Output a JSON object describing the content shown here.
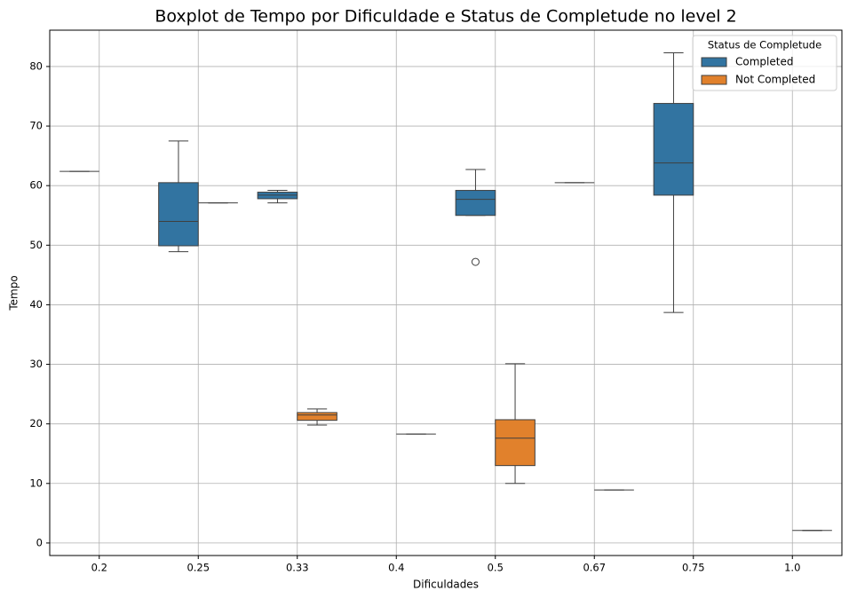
{
  "chart_data": {
    "type": "boxplot",
    "title": "Boxplot de Tempo por Dificuldade e Status de Completude no level 2",
    "x_label": "Dificuldades",
    "y_label": "Tempo",
    "categories": [
      "0.2",
      "0.25",
      "0.33",
      "0.4",
      "0.5",
      "0.67",
      "0.75",
      "1.0"
    ],
    "legend_title": "Status de Completude",
    "legend_position": "upper right",
    "grid": true,
    "ylim": [
      -2.1,
      86.1
    ],
    "yticks": [
      0,
      10,
      20,
      30,
      40,
      50,
      60,
      70,
      80
    ],
    "series": [
      {
        "name": "Completed",
        "color": "#3274a1",
        "boxes": [
          {
            "min": 62.4,
            "q1": 62.4,
            "median": 62.4,
            "q3": 62.4,
            "max": 62.4,
            "outliers": []
          },
          {
            "min": 48.9,
            "q1": 49.9,
            "median": 54.0,
            "q3": 60.5,
            "max": 67.5,
            "outliers": []
          },
          {
            "min": 57.1,
            "q1": 57.8,
            "median": 58.4,
            "q3": 58.9,
            "max": 59.2,
            "outliers": []
          },
          null,
          {
            "min": 55.0,
            "q1": 55.0,
            "median": 57.7,
            "q3": 59.2,
            "max": 62.7,
            "outliers": [
              47.2
            ]
          },
          {
            "min": 60.5,
            "q1": 60.5,
            "median": 60.5,
            "q3": 60.5,
            "max": 60.5,
            "outliers": []
          },
          {
            "min": 38.7,
            "q1": 58.4,
            "median": 63.8,
            "q3": 73.8,
            "max": 82.3,
            "outliers": []
          },
          null
        ]
      },
      {
        "name": "Not Completed",
        "color": "#e1812c",
        "boxes": [
          null,
          {
            "min": 57.1,
            "q1": 57.1,
            "median": 57.1,
            "q3": 57.1,
            "max": 57.1,
            "outliers": []
          },
          {
            "min": 19.8,
            "q1": 20.6,
            "median": 21.5,
            "q3": 21.9,
            "max": 22.5,
            "outliers": []
          },
          {
            "min": 18.3,
            "q1": 18.3,
            "median": 18.3,
            "q3": 18.3,
            "max": 18.3,
            "outliers": []
          },
          {
            "min": 10.0,
            "q1": 13.0,
            "median": 17.6,
            "q3": 20.7,
            "max": 30.1,
            "outliers": []
          },
          {
            "min": 8.9,
            "q1": 8.9,
            "median": 8.9,
            "q3": 8.9,
            "max": 8.9,
            "outliers": []
          },
          null,
          {
            "min": 2.1,
            "q1": 2.1,
            "median": 2.1,
            "q3": 2.1,
            "max": 2.1,
            "outliers": []
          }
        ]
      }
    ]
  }
}
